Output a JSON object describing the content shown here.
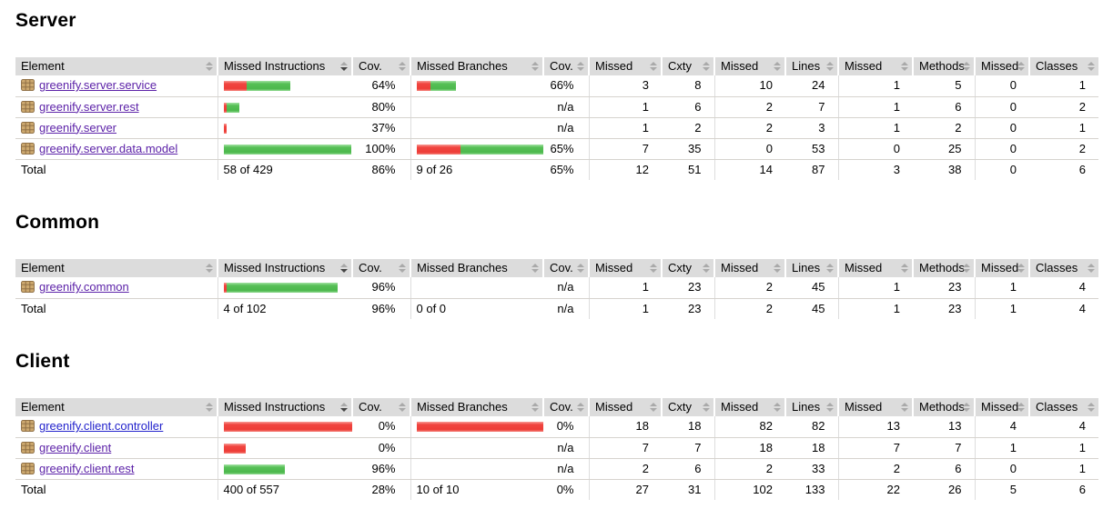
{
  "columns": [
    {
      "label": "Element",
      "type": "element"
    },
    {
      "label": "Missed Instructions",
      "type": "bar"
    },
    {
      "label": "Cov.",
      "type": "pct"
    },
    {
      "label": "Missed Branches",
      "type": "bar"
    },
    {
      "label": "Cov.",
      "type": "pct"
    },
    {
      "label": "Missed",
      "type": "num"
    },
    {
      "label": "Cxty",
      "type": "num"
    },
    {
      "label": "Missed",
      "type": "num"
    },
    {
      "label": "Lines",
      "type": "num"
    },
    {
      "label": "Missed",
      "type": "num"
    },
    {
      "label": "Methods",
      "type": "num"
    },
    {
      "label": "Missed",
      "type": "num"
    },
    {
      "label": "Classes",
      "type": "num"
    }
  ],
  "sort": {
    "column_index": 1,
    "direction": "desc"
  },
  "colors": {
    "header_bg": "#dcdcdc",
    "row_border": "#d6d3ce",
    "col_line": "#dddddd",
    "bar_red": "#ee3d37",
    "bar_green": "#4cb84c",
    "link": "#2222cc",
    "link_visited": "#5c22a8",
    "sort_idle": "#a9a9a9",
    "sort_active": "#444444"
  },
  "sections": [
    {
      "title": "Server",
      "rows": [
        {
          "label": "greenify.server.service",
          "visited": true,
          "instr_bar": {
            "red": 25,
            "green": 48
          },
          "instr_cov": "64%",
          "branch_bar": {
            "red": 15,
            "green": 28
          },
          "branch_cov": "66%",
          "values": [
            "3",
            "8",
            "10",
            "24",
            "1",
            "5",
            "0",
            "1"
          ]
        },
        {
          "label": "greenify.server.rest",
          "visited": true,
          "instr_bar": {
            "red": 3,
            "green": 14
          },
          "instr_cov": "80%",
          "branch_bar": null,
          "branch_cov": "n/a",
          "values": [
            "1",
            "6",
            "2",
            "7",
            "1",
            "6",
            "0",
            "2"
          ]
        },
        {
          "label": "greenify.server",
          "visited": true,
          "instr_bar": {
            "red": 3,
            "green": 0
          },
          "instr_cov": "37%",
          "branch_bar": null,
          "branch_cov": "n/a",
          "values": [
            "1",
            "2",
            "2",
            "3",
            "1",
            "2",
            "0",
            "1"
          ]
        },
        {
          "label": "greenify.server.data.model",
          "visited": true,
          "instr_bar": {
            "red": 0,
            "green": 140
          },
          "instr_cov": "100%",
          "branch_bar": {
            "red": 48,
            "green": 91
          },
          "branch_cov": "65%",
          "values": [
            "7",
            "35",
            "0",
            "53",
            "0",
            "25",
            "0",
            "2"
          ]
        }
      ],
      "total": {
        "label": "Total",
        "instr_text": "58 of 429",
        "instr_cov": "86%",
        "branch_text": "9 of 26",
        "branch_cov": "65%",
        "values": [
          "12",
          "51",
          "14",
          "87",
          "3",
          "38",
          "0",
          "6"
        ]
      }
    },
    {
      "title": "Common",
      "rows": [
        {
          "label": "greenify.common",
          "visited": true,
          "instr_bar": {
            "red": 3,
            "green": 122
          },
          "instr_cov": "96%",
          "branch_bar": null,
          "branch_cov": "n/a",
          "values": [
            "1",
            "23",
            "2",
            "45",
            "1",
            "23",
            "1",
            "4"
          ]
        }
      ],
      "total": {
        "label": "Total",
        "instr_text": "4 of 102",
        "instr_cov": "96%",
        "branch_text": "0 of 0",
        "branch_cov": "n/a",
        "values": [
          "1",
          "23",
          "2",
          "45",
          "1",
          "23",
          "1",
          "4"
        ]
      }
    },
    {
      "title": "Client",
      "rows": [
        {
          "label": "greenify.client.controller",
          "visited": false,
          "instr_bar": {
            "red": 142,
            "green": 0
          },
          "instr_cov": "0%",
          "branch_bar": {
            "red": 142,
            "green": 0
          },
          "branch_cov": "0%",
          "values": [
            "18",
            "18",
            "82",
            "82",
            "13",
            "13",
            "4",
            "4"
          ]
        },
        {
          "label": "greenify.client",
          "visited": true,
          "instr_bar": {
            "red": 24,
            "green": 0
          },
          "instr_cov": "0%",
          "branch_bar": null,
          "branch_cov": "n/a",
          "values": [
            "7",
            "7",
            "18",
            "18",
            "7",
            "7",
            "1",
            "1"
          ]
        },
        {
          "label": "greenify.client.rest",
          "visited": true,
          "instr_bar": {
            "red": 0,
            "green": 67
          },
          "instr_cov": "96%",
          "branch_bar": null,
          "branch_cov": "n/a",
          "values": [
            "2",
            "6",
            "2",
            "33",
            "2",
            "6",
            "0",
            "1"
          ]
        }
      ],
      "total": {
        "label": "Total",
        "instr_text": "400 of 557",
        "instr_cov": "28%",
        "branch_text": "10 of 10",
        "branch_cov": "0%",
        "values": [
          "27",
          "31",
          "102",
          "133",
          "22",
          "26",
          "5",
          "6"
        ]
      }
    }
  ]
}
